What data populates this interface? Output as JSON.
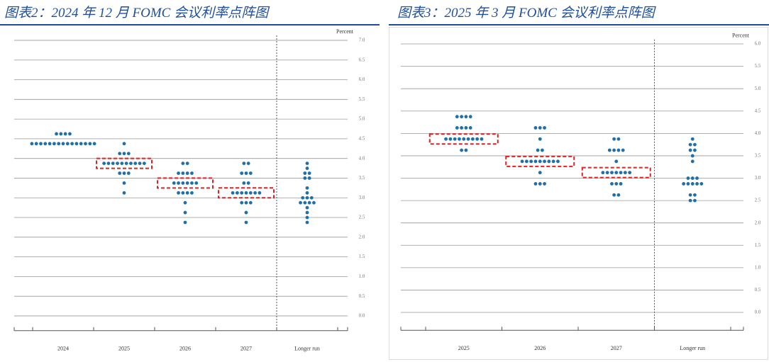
{
  "chart_data": [
    {
      "type": "dot",
      "title": "图表2：2024 年 12 月 FOMC 会议利率点阵图",
      "y_label": "Percent",
      "categories": [
        "2024",
        "2025",
        "2026",
        "2027",
        "Longer run"
      ],
      "values": [
        [
          4.625,
          4.625,
          4.625,
          4.625,
          4.375,
          4.375,
          4.375,
          4.375,
          4.375,
          4.375,
          4.375,
          4.375,
          4.375,
          4.375,
          4.375,
          4.375,
          4.375,
          4.375,
          4.375
        ],
        [
          4.375,
          4.125,
          4.125,
          4.125,
          3.875,
          3.875,
          3.875,
          3.875,
          3.875,
          3.875,
          3.875,
          3.875,
          3.875,
          3.875,
          3.625,
          3.625,
          3.625,
          3.375,
          3.125
        ],
        [
          3.875,
          3.875,
          3.625,
          3.625,
          3.625,
          3.625,
          3.375,
          3.375,
          3.375,
          3.375,
          3.375,
          3.375,
          3.125,
          3.125,
          3.125,
          3.125,
          2.875,
          2.625,
          2.375
        ],
        [
          3.875,
          3.875,
          3.625,
          3.625,
          3.625,
          3.375,
          3.375,
          3.125,
          3.125,
          3.125,
          3.125,
          3.125,
          3.125,
          3.125,
          2.875,
          2.875,
          2.875,
          2.625,
          2.375
        ],
        [
          3.875,
          3.75,
          3.625,
          3.625,
          3.5,
          3.5,
          3.25,
          3.125,
          3.0,
          3.0,
          3.0,
          2.875,
          2.875,
          2.875,
          2.875,
          2.75,
          2.625,
          2.5,
          2.375
        ]
      ],
      "highlight": [
        null,
        3.875,
        3.375,
        3.125,
        null
      ],
      "color": "#1f6fa8",
      "highlight_color": "#e02020",
      "ylim": [
        -0.375,
        7.125
      ],
      "yticks": [
        {
          "value": 0,
          "label": "0.0"
        },
        0.5,
        {
          "value": 1,
          "label": "1.0"
        },
        1.5,
        {
          "value": 2,
          "label": "2.0"
        },
        2.5,
        {
          "value": 3,
          "label": "3.0"
        },
        3.5,
        {
          "value": 4,
          "label": "4.0"
        },
        4.5,
        {
          "value": 5,
          "label": "5.0"
        },
        5.5,
        {
          "value": 6,
          "label": "6.0"
        },
        6.5,
        {
          "value": 7,
          "label": "7.0"
        }
      ],
      "grid": true
    },
    {
      "type": "dot",
      "title": "图表3：2025 年 3 月 FOMC 会议利率点阵图",
      "y_label": "Percent",
      "categories": [
        "2025",
        "2026",
        "2027",
        "Longer run"
      ],
      "values": [
        [
          4.375,
          4.375,
          4.375,
          4.375,
          4.125,
          4.125,
          4.125,
          4.125,
          3.875,
          3.875,
          3.875,
          3.875,
          3.875,
          3.875,
          3.875,
          3.875,
          3.875,
          3.625,
          3.625
        ],
        [
          4.125,
          4.125,
          4.125,
          3.875,
          3.625,
          3.625,
          3.375,
          3.375,
          3.375,
          3.375,
          3.375,
          3.375,
          3.375,
          3.375,
          3.375,
          3.125,
          2.875,
          2.875,
          2.875
        ],
        [
          3.875,
          3.875,
          3.625,
          3.625,
          3.625,
          3.625,
          3.375,
          3.125,
          3.125,
          3.125,
          3.125,
          3.125,
          3.125,
          3.125,
          2.875,
          2.875,
          2.875,
          2.625,
          2.625
        ],
        [
          3.875,
          3.75,
          3.75,
          3.625,
          3.625,
          3.5,
          3.375,
          3.0,
          3.0,
          3.0,
          2.875,
          2.875,
          2.875,
          2.875,
          2.875,
          2.625,
          2.625,
          2.5,
          2.5
        ]
      ],
      "highlight": [
        3.875,
        3.375,
        3.125,
        null
      ],
      "color": "#1f6fa8",
      "highlight_color": "#e02020",
      "ylim": [
        -0.4,
        6.1
      ],
      "yticks": [
        {
          "value": 0,
          "label": "0.0"
        },
        0.5,
        {
          "value": 1,
          "label": "1.0"
        },
        1.5,
        {
          "value": 2,
          "label": "2.0"
        },
        2.5,
        {
          "value": 3,
          "label": "3.0"
        },
        3.5,
        {
          "value": 4,
          "label": "4.0"
        },
        4.5,
        {
          "value": 5,
          "label": "5.0"
        },
        5.5,
        {
          "value": 6,
          "label": "6.0"
        }
      ],
      "grid": true
    }
  ]
}
